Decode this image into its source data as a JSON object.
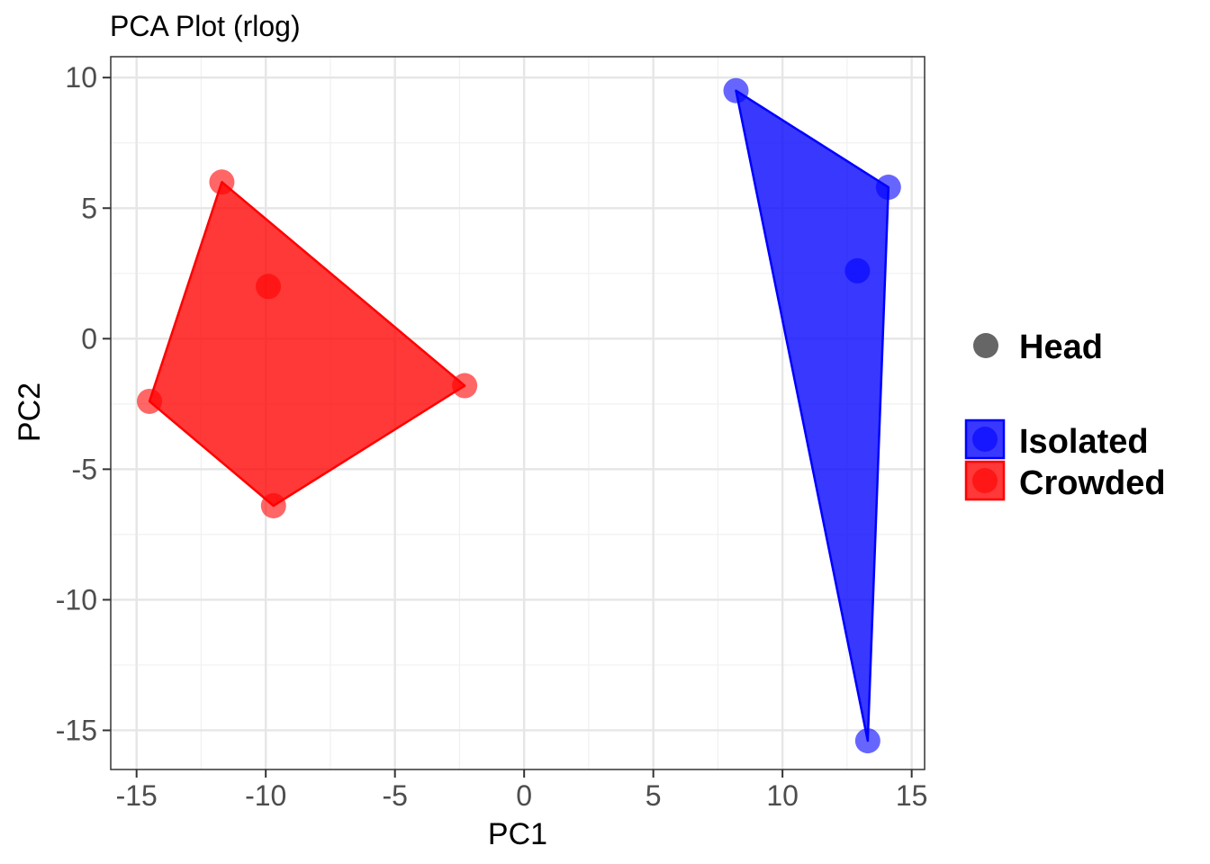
{
  "chart_data": {
    "type": "scatter",
    "title": "PCA Plot (rlog)",
    "xlabel": "PC1",
    "ylabel": "PC2",
    "xlim": [
      -16,
      15.5
    ],
    "ylim": [
      -16.5,
      10.8
    ],
    "xticks": [
      -15,
      -10,
      -5,
      0,
      5,
      10,
      15
    ],
    "yticks": [
      -15,
      -10,
      -5,
      0,
      5,
      10
    ],
    "grid": true,
    "legend_position": "right",
    "shape_legend": [
      {
        "label": "Head",
        "color": "#666666"
      }
    ],
    "series": [
      {
        "name": "Isolated",
        "color": "#0000ff",
        "points": [
          {
            "x": 8.2,
            "y": 9.5
          },
          {
            "x": 14.1,
            "y": 5.8
          },
          {
            "x": 12.9,
            "y": 2.6
          },
          {
            "x": 13.3,
            "y": -15.4
          }
        ],
        "hull": [
          0,
          1,
          3
        ]
      },
      {
        "name": "Crowded",
        "color": "#ff0000",
        "points": [
          {
            "x": -11.7,
            "y": 6.0
          },
          {
            "x": -9.9,
            "y": 2.0
          },
          {
            "x": -14.5,
            "y": -2.4
          },
          {
            "x": -9.7,
            "y": -6.4
          },
          {
            "x": -2.3,
            "y": -1.8
          }
        ],
        "hull": [
          0,
          4,
          3,
          2
        ]
      }
    ]
  }
}
